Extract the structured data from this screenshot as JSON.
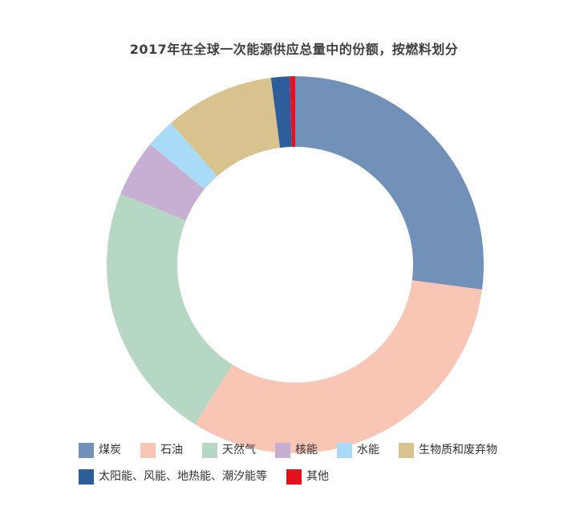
{
  "chart_data": {
    "type": "pie",
    "variant": "donut",
    "title": "2017年在全球一次能源供应总量中的份额，按燃料划分",
    "unit": "%",
    "start_angle_deg": 0,
    "direction": "clockwise",
    "inner_radius_ratio": 0.625,
    "legend_position": "bottom",
    "series": [
      {
        "key": "coal",
        "label": "煤炭",
        "value": 27.1,
        "color": "#7291b8"
      },
      {
        "key": "oil",
        "label": "石油",
        "value": 31.8,
        "color": "#f9c5b4"
      },
      {
        "key": "natural-gas",
        "label": "天然气",
        "value": 22.2,
        "color": "#b7d7c5"
      },
      {
        "key": "nuclear",
        "label": "核能",
        "value": 4.9,
        "color": "#c7afd4"
      },
      {
        "key": "hydro",
        "label": "水能",
        "value": 2.5,
        "color": "#a8dcf6"
      },
      {
        "key": "biomass-waste",
        "label": "生物质和废弃物",
        "value": 9.4,
        "color": "#d8c28e"
      },
      {
        "key": "solar-wind-geothermal-tidal",
        "label": "太阳能、风能、地热能、潮汐能等",
        "value": 1.6,
        "color": "#2e5e99"
      },
      {
        "key": "other",
        "label": "其他",
        "value": 0.5,
        "color": "#e8101c"
      }
    ],
    "legend_rows": [
      [
        0,
        1,
        2,
        3,
        4,
        5
      ],
      [
        6,
        7
      ]
    ]
  }
}
